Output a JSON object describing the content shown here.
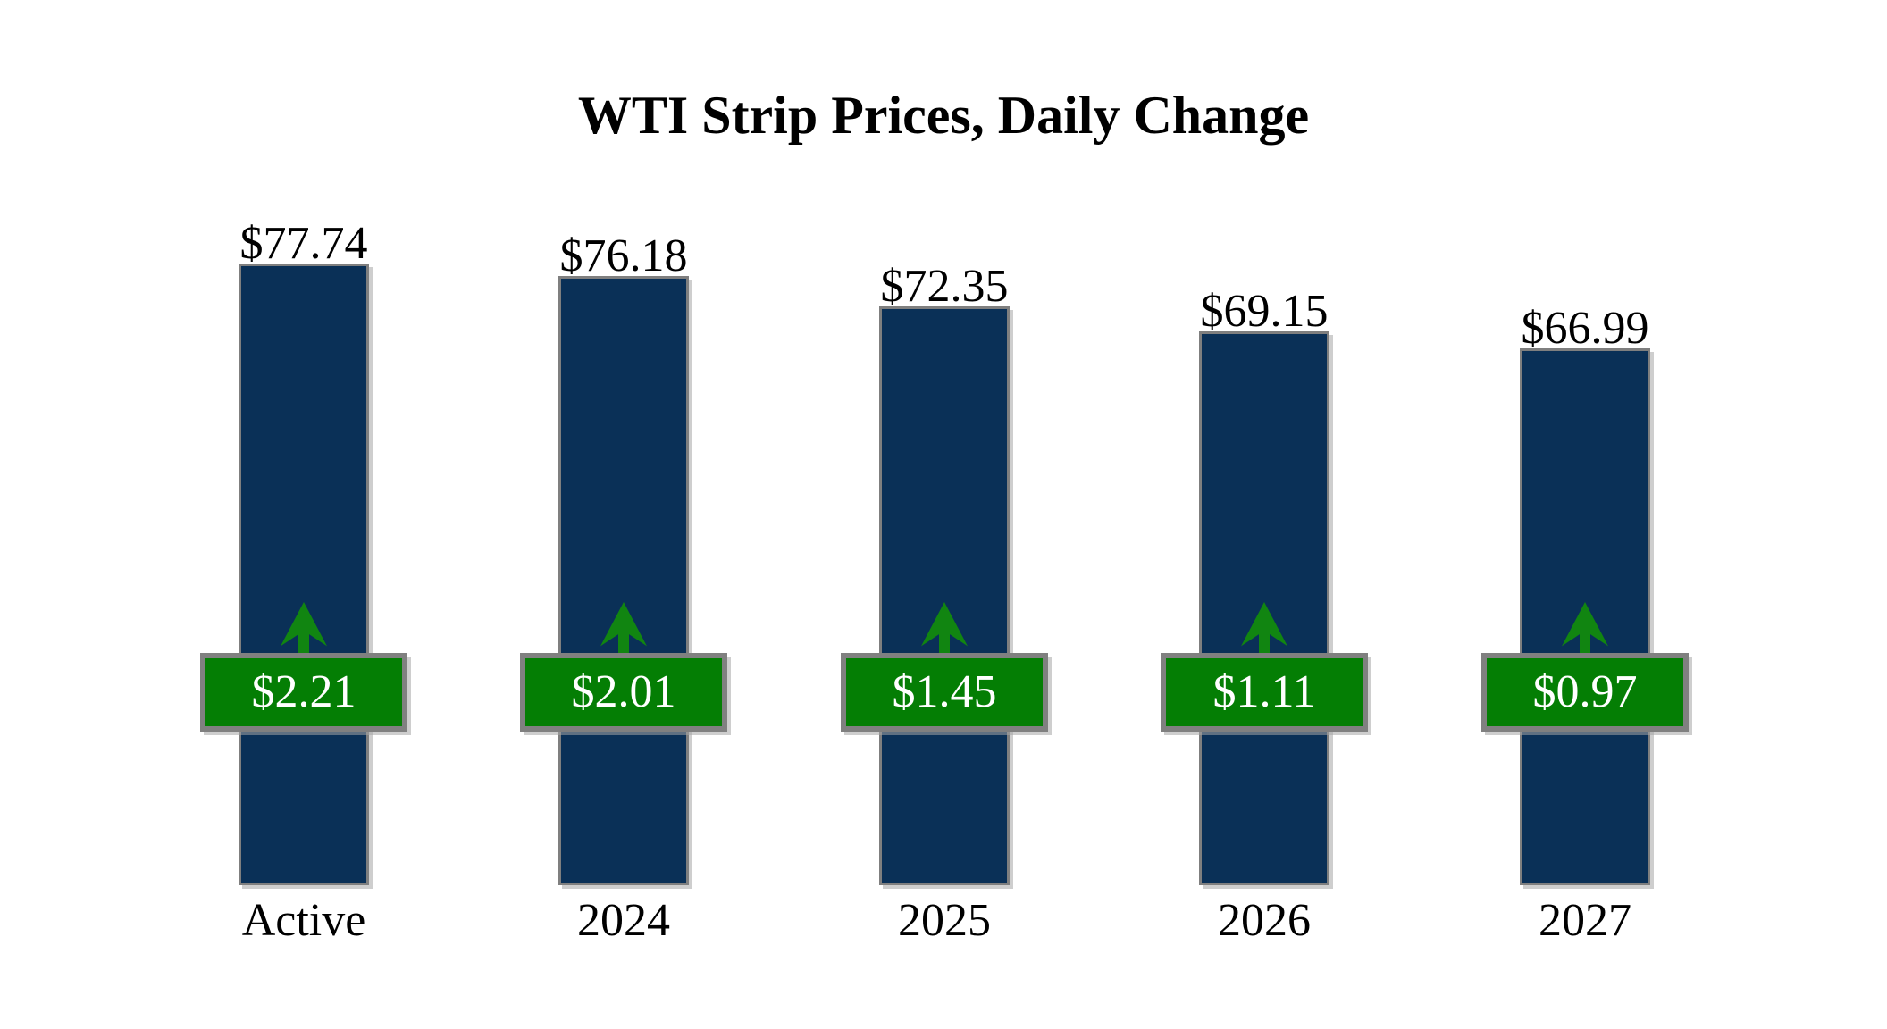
{
  "colors": {
    "background": "#ffffff",
    "text": "#000000",
    "bar_fill": "#0a3057",
    "bar_border": "#7f7f7f",
    "badge_fill": "#047e04",
    "badge_border": "#808080",
    "badge_text": "#ffffff",
    "arrow_green": "#118511"
  },
  "chart_data": {
    "type": "bar",
    "title": "WTI Strip Prices, Daily Change",
    "categories": [
      "Active",
      "2024",
      "2025",
      "2026",
      "2027"
    ],
    "series": [
      {
        "name": "strip_price",
        "values": [
          77.74,
          76.18,
          72.35,
          69.15,
          66.99
        ]
      },
      {
        "name": "daily_change",
        "values": [
          2.21,
          2.01,
          1.45,
          1.11,
          0.97
        ]
      }
    ],
    "bars": [
      {
        "category": "Active",
        "price": 77.74,
        "price_label": "$77.74",
        "change": 2.21,
        "change_label": "$2.21",
        "direction": "up"
      },
      {
        "category": "2024",
        "price": 76.18,
        "price_label": "$76.18",
        "change": 2.01,
        "change_label": "$2.01",
        "direction": "up"
      },
      {
        "category": "2025",
        "price": 72.35,
        "price_label": "$72.35",
        "change": 1.45,
        "change_label": "$1.45",
        "direction": "up"
      },
      {
        "category": "2026",
        "price": 69.15,
        "price_label": "$69.15",
        "change": 1.11,
        "change_label": "$1.11",
        "direction": "up"
      },
      {
        "category": "2027",
        "price": 66.99,
        "price_label": "$66.99",
        "change": 0.97,
        "change_label": "$0.97",
        "direction": "up"
      }
    ],
    "ylim": [
      0,
      77.74
    ],
    "value_axis_visible": false,
    "gridlines": false,
    "legend": "none"
  }
}
